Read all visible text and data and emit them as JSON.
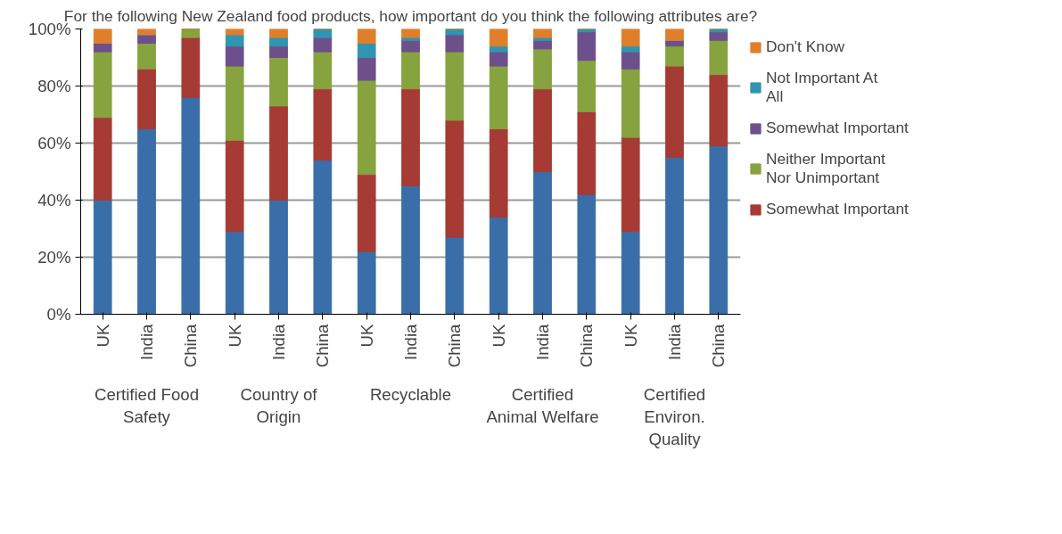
{
  "chart_data": {
    "type": "bar",
    "stacked": true,
    "title": "For the following New Zealand food products, how important do you think the following attributes are?",
    "categories": [
      "UK",
      "India",
      "China",
      "UK",
      "India",
      "China",
      "UK",
      "India",
      "China",
      "UK",
      "India",
      "China",
      "UK",
      "India",
      "China"
    ],
    "annotations": [
      "Certified Food Safety",
      "Country of Origin",
      "Recyclable",
      "Certified Animal Welfare",
      "Certified Environ. Quality"
    ],
    "series": [
      {
        "color": "#3a6ea8",
        "values": [
          40,
          65,
          76,
          29,
          40,
          54,
          22,
          45,
          27,
          34,
          50,
          42,
          29,
          55,
          59
        ]
      },
      {
        "name": "Somewhat Important",
        "color": "#a63a34",
        "values": [
          29,
          21,
          21,
          32,
          33,
          25,
          27,
          34,
          41,
          31,
          29,
          29,
          33,
          32,
          25
        ]
      },
      {
        "name": "Neither Important Nor Unimportant",
        "color": "#86a33f",
        "values": [
          23,
          9,
          3,
          26,
          17,
          13,
          33,
          13,
          24,
          22,
          14,
          18,
          24,
          7,
          12
        ]
      },
      {
        "name": "Somewhat Important",
        "color": "#6d4f8c",
        "values": [
          3,
          3,
          0,
          7,
          4,
          5,
          8,
          4,
          6,
          5,
          3,
          10,
          6,
          2,
          3
        ]
      },
      {
        "name": "Not Important At All",
        "color": "#2f95b0",
        "values": [
          0,
          0,
          0,
          4,
          3,
          3,
          5,
          1,
          2,
          2,
          1,
          1,
          2,
          0,
          1
        ]
      },
      {
        "name": "Don't Know",
        "color": "#e07f2b",
        "values": [
          5,
          2,
          0,
          2,
          3,
          0,
          5,
          3,
          0,
          6,
          3,
          0,
          6,
          4,
          0
        ]
      }
    ],
    "ylim": [
      0,
      100
    ],
    "yticks": [
      {
        "value": 0,
        "label": "0%"
      },
      {
        "value": 20,
        "label": "20%"
      },
      {
        "value": 40,
        "label": "40%"
      },
      {
        "value": 60,
        "label": "60%"
      },
      {
        "value": 80,
        "label": "80%"
      },
      {
        "value": 100,
        "label": "100%"
      }
    ],
    "grid": "y",
    "legend": "right"
  }
}
